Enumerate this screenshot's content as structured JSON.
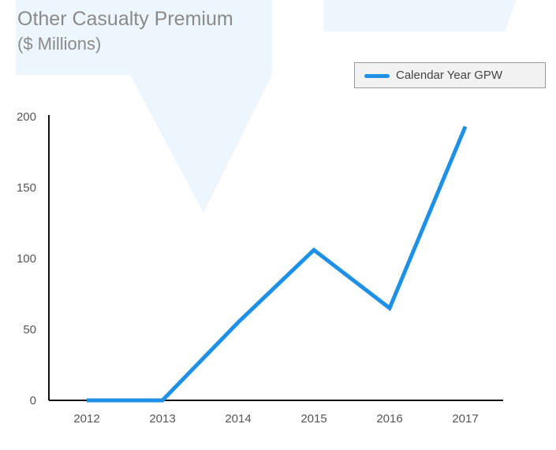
{
  "title": "Other Casualty Premium",
  "subtitle": "($ Millions)",
  "legend": {
    "label": "Calendar Year GPW",
    "color": "#1e90e6"
  },
  "colors": {
    "series": "#1e90e6",
    "axis": "#111111",
    "text": "#555555",
    "background_shape": "#e6f2fb"
  },
  "chart_data": {
    "type": "line",
    "title": "Other Casualty Premium",
    "subtitle": "($ Millions)",
    "xlabel": "",
    "ylabel": "",
    "categories": [
      "2012",
      "2013",
      "2014",
      "2015",
      "2016",
      "2017"
    ],
    "series": [
      {
        "name": "Calendar Year GPW",
        "values": [
          0,
          0,
          55,
          106,
          65,
          193
        ]
      }
    ],
    "ylim": [
      0,
      200
    ],
    "yticks": [
      0,
      50,
      100,
      150,
      200
    ],
    "grid": false,
    "legend_position": "top-right"
  }
}
